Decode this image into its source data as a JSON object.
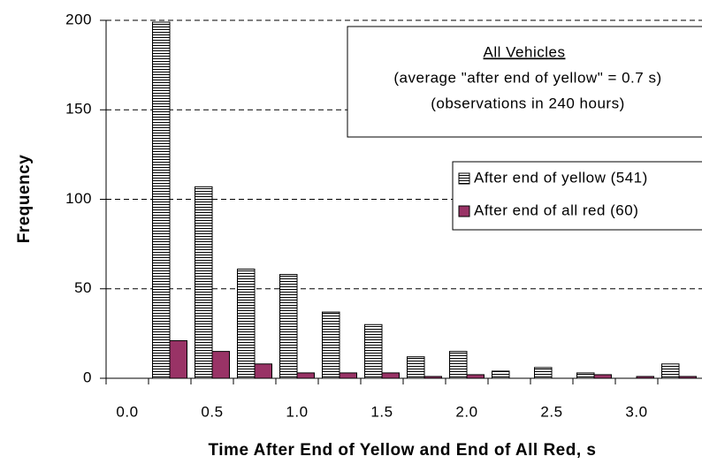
{
  "chart_data": {
    "type": "bar",
    "y_label": "Frequency",
    "x_label": "Time After End of Yellow and End of All Red, s",
    "categories": [
      "0.0",
      null,
      "0.5",
      null,
      "1.0",
      null,
      "1.5",
      null,
      "2.0",
      null,
      "2.5",
      null,
      "3.0",
      null
    ],
    "series": [
      {
        "name": "After end of yellow (541)",
        "color": "#ffffff",
        "pattern": "horizontal-stripes",
        "values": [
          0,
          199,
          107,
          61,
          58,
          37,
          30,
          12,
          15,
          4,
          6,
          3,
          0,
          8
        ]
      },
      {
        "name": "After end of all red (60)",
        "color": "#993366",
        "values": [
          0,
          21,
          15,
          8,
          3,
          3,
          3,
          1,
          2,
          0,
          0,
          2,
          1,
          1
        ]
      }
    ],
    "ylim": [
      0,
      200
    ],
    "yticks": [
      0,
      50,
      100,
      150,
      200
    ],
    "grid": true,
    "annotation": {
      "title": "All Vehicles",
      "lines": [
        "(average \"after end of yellow\" = 0.7 s)",
        "(observations in 240 hours)"
      ]
    },
    "legend": "right"
  }
}
